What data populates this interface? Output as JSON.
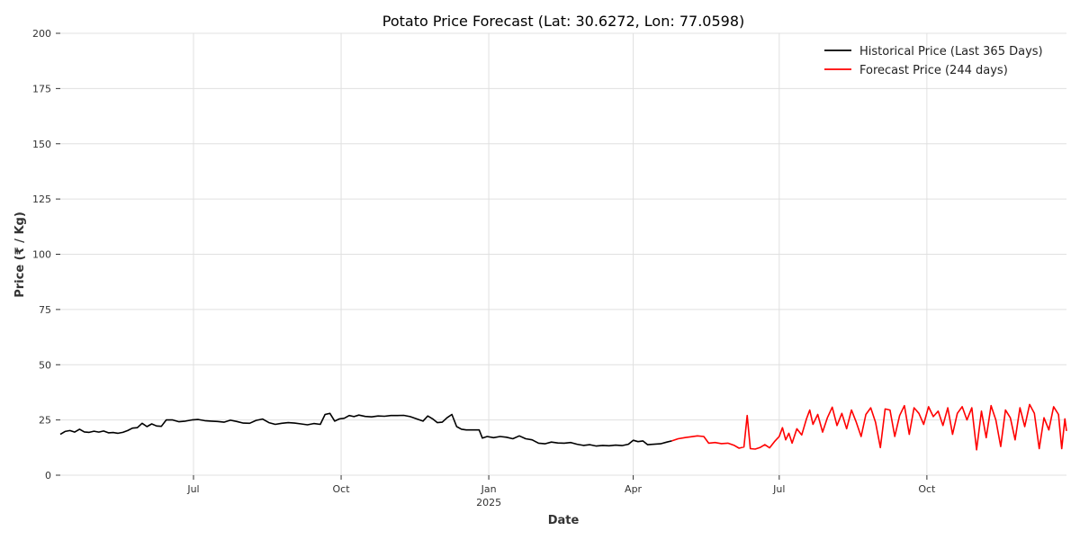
{
  "chart_data": {
    "type": "line",
    "title": "Potato Price Forecast (Lat: 30.6272, Lon: 77.0598)",
    "xlabel": "Date",
    "ylabel": "Price (₹ / Kg)",
    "xlim": [
      "2024-04-09",
      "2025-12-27"
    ],
    "ylim": [
      0,
      200
    ],
    "yticks": [
      0,
      25,
      50,
      75,
      100,
      125,
      150,
      175,
      200
    ],
    "xticks": [
      {
        "date": "2024-07-01",
        "label": "Jul",
        "sublabel": ""
      },
      {
        "date": "2024-10-01",
        "label": "Oct",
        "sublabel": ""
      },
      {
        "date": "2025-01-01",
        "label": "Jan",
        "sublabel": "2025"
      },
      {
        "date": "2025-04-01",
        "label": "Apr",
        "sublabel": ""
      },
      {
        "date": "2025-07-01",
        "label": "Jul",
        "sublabel": ""
      },
      {
        "date": "2025-10-01",
        "label": "Oct",
        "sublabel": ""
      }
    ],
    "grid": true,
    "legend_position": "top-right",
    "series": [
      {
        "name": "Historical Price (Last 365 Days)",
        "color": "#000000",
        "points": [
          [
            "2024-04-09",
            18.5
          ],
          [
            "2024-04-12",
            19.8
          ],
          [
            "2024-04-15",
            20.2
          ],
          [
            "2024-04-18",
            19.5
          ],
          [
            "2024-04-21",
            20.8
          ],
          [
            "2024-04-24",
            19.6
          ],
          [
            "2024-04-27",
            19.4
          ],
          [
            "2024-04-30",
            19.9
          ],
          [
            "2024-05-03",
            19.5
          ],
          [
            "2024-05-06",
            20.0
          ],
          [
            "2024-05-09",
            19.2
          ],
          [
            "2024-05-12",
            19.3
          ],
          [
            "2024-05-15",
            19.0
          ],
          [
            "2024-05-18",
            19.4
          ],
          [
            "2024-05-21",
            20.2
          ],
          [
            "2024-05-24",
            21.3
          ],
          [
            "2024-05-27",
            21.5
          ],
          [
            "2024-05-30",
            23.5
          ],
          [
            "2024-06-02",
            22.0
          ],
          [
            "2024-06-05",
            23.2
          ],
          [
            "2024-06-08",
            22.3
          ],
          [
            "2024-06-11",
            22.1
          ],
          [
            "2024-06-14",
            25.0
          ],
          [
            "2024-06-18",
            25.0
          ],
          [
            "2024-06-22",
            24.2
          ],
          [
            "2024-06-26",
            24.5
          ],
          [
            "2024-06-30",
            25.0
          ],
          [
            "2024-07-04",
            25.2
          ],
          [
            "2024-07-08",
            24.7
          ],
          [
            "2024-07-12",
            24.5
          ],
          [
            "2024-07-16",
            24.3
          ],
          [
            "2024-07-20",
            24.0
          ],
          [
            "2024-07-24",
            24.9
          ],
          [
            "2024-07-28",
            24.3
          ],
          [
            "2024-08-01",
            23.6
          ],
          [
            "2024-08-05",
            23.5
          ],
          [
            "2024-08-09",
            24.8
          ],
          [
            "2024-08-13",
            25.4
          ],
          [
            "2024-08-17",
            23.8
          ],
          [
            "2024-08-21",
            23.0
          ],
          [
            "2024-08-25",
            23.5
          ],
          [
            "2024-08-29",
            23.8
          ],
          [
            "2024-09-02",
            23.6
          ],
          [
            "2024-09-06",
            23.2
          ],
          [
            "2024-09-10",
            22.8
          ],
          [
            "2024-09-14",
            23.4
          ],
          [
            "2024-09-18",
            23.0
          ],
          [
            "2024-09-21",
            27.5
          ],
          [
            "2024-09-24",
            28.0
          ],
          [
            "2024-09-27",
            24.5
          ],
          [
            "2024-09-30",
            25.5
          ],
          [
            "2024-10-03",
            25.8
          ],
          [
            "2024-10-06",
            27.0
          ],
          [
            "2024-10-09",
            26.5
          ],
          [
            "2024-10-12",
            27.2
          ],
          [
            "2024-10-16",
            26.6
          ],
          [
            "2024-10-20",
            26.4
          ],
          [
            "2024-10-24",
            26.8
          ],
          [
            "2024-10-28",
            26.7
          ],
          [
            "2024-11-01",
            27.0
          ],
          [
            "2024-11-05",
            27.0
          ],
          [
            "2024-11-09",
            27.1
          ],
          [
            "2024-11-13",
            26.5
          ],
          [
            "2024-11-17",
            25.5
          ],
          [
            "2024-11-21",
            24.5
          ],
          [
            "2024-11-24",
            26.8
          ],
          [
            "2024-11-27",
            25.5
          ],
          [
            "2024-11-30",
            23.8
          ],
          [
            "2024-12-03",
            24.0
          ],
          [
            "2024-12-06",
            26.0
          ],
          [
            "2024-12-09",
            27.5
          ],
          [
            "2024-12-12",
            22.0
          ],
          [
            "2024-12-15",
            20.8
          ],
          [
            "2024-12-18",
            20.5
          ],
          [
            "2024-12-22",
            20.5
          ],
          [
            "2024-12-26",
            20.5
          ],
          [
            "2024-12-28",
            16.8
          ],
          [
            "2024-12-31",
            17.5
          ],
          [
            "2025-01-04",
            17.0
          ],
          [
            "2025-01-08",
            17.5
          ],
          [
            "2025-01-12",
            17.2
          ],
          [
            "2025-01-16",
            16.5
          ],
          [
            "2025-01-20",
            17.8
          ],
          [
            "2025-01-24",
            16.5
          ],
          [
            "2025-01-28",
            16.0
          ],
          [
            "2025-02-01",
            14.5
          ],
          [
            "2025-02-05",
            14.2
          ],
          [
            "2025-02-09",
            15.0
          ],
          [
            "2025-02-13",
            14.6
          ],
          [
            "2025-02-17",
            14.5
          ],
          [
            "2025-02-21",
            14.8
          ],
          [
            "2025-02-25",
            14.0
          ],
          [
            "2025-03-01",
            13.5
          ],
          [
            "2025-03-05",
            13.8
          ],
          [
            "2025-03-09",
            13.2
          ],
          [
            "2025-03-13",
            13.5
          ],
          [
            "2025-03-17",
            13.3
          ],
          [
            "2025-03-21",
            13.6
          ],
          [
            "2025-03-25",
            13.4
          ],
          [
            "2025-03-29",
            14.0
          ],
          [
            "2025-04-01",
            15.8
          ],
          [
            "2025-04-04",
            15.2
          ],
          [
            "2025-04-07",
            15.5
          ],
          [
            "2025-04-10",
            13.8
          ],
          [
            "2025-04-14",
            14.0
          ],
          [
            "2025-04-18",
            14.2
          ],
          [
            "2025-04-22",
            15.0
          ],
          [
            "2025-04-25",
            15.5
          ]
        ]
      },
      {
        "name": "Forecast Price (244 days)",
        "color": "#ff0000",
        "points": [
          [
            "2025-04-25",
            15.5
          ],
          [
            "2025-04-29",
            16.5
          ],
          [
            "2025-05-03",
            17.0
          ],
          [
            "2025-05-07",
            17.4
          ],
          [
            "2025-05-11",
            17.8
          ],
          [
            "2025-05-15",
            17.5
          ],
          [
            "2025-05-18",
            14.5
          ],
          [
            "2025-05-22",
            14.8
          ],
          [
            "2025-05-26",
            14.3
          ],
          [
            "2025-05-30",
            14.5
          ],
          [
            "2025-06-03",
            13.5
          ],
          [
            "2025-06-06",
            12.2
          ],
          [
            "2025-06-09",
            12.8
          ],
          [
            "2025-06-11",
            27.0
          ],
          [
            "2025-06-13",
            12.0
          ],
          [
            "2025-06-16",
            11.8
          ],
          [
            "2025-06-19",
            12.5
          ],
          [
            "2025-06-22",
            13.8
          ],
          [
            "2025-06-25",
            12.4
          ],
          [
            "2025-06-28",
            15.2
          ],
          [
            "2025-07-01",
            17.5
          ],
          [
            "2025-07-03",
            21.5
          ],
          [
            "2025-07-05",
            16.0
          ],
          [
            "2025-07-07",
            19.0
          ],
          [
            "2025-07-09",
            14.5
          ],
          [
            "2025-07-12",
            21.0
          ],
          [
            "2025-07-15",
            18.2
          ],
          [
            "2025-07-18",
            25.5
          ],
          [
            "2025-07-20",
            29.5
          ],
          [
            "2025-07-22",
            23.0
          ],
          [
            "2025-07-25",
            27.5
          ],
          [
            "2025-07-28",
            19.5
          ],
          [
            "2025-07-31",
            26.0
          ],
          [
            "2025-08-03",
            30.8
          ],
          [
            "2025-08-06",
            22.5
          ],
          [
            "2025-08-09",
            28.0
          ],
          [
            "2025-08-12",
            21.0
          ],
          [
            "2025-08-15",
            29.5
          ],
          [
            "2025-08-18",
            24.0
          ],
          [
            "2025-08-21",
            17.5
          ],
          [
            "2025-08-24",
            27.5
          ],
          [
            "2025-08-27",
            30.5
          ],
          [
            "2025-08-30",
            24.0
          ],
          [
            "2025-09-02",
            12.5
          ],
          [
            "2025-09-05",
            30.0
          ],
          [
            "2025-09-08",
            29.5
          ],
          [
            "2025-09-11",
            17.5
          ],
          [
            "2025-09-14",
            27.0
          ],
          [
            "2025-09-17",
            31.5
          ],
          [
            "2025-09-20",
            18.5
          ],
          [
            "2025-09-23",
            30.5
          ],
          [
            "2025-09-26",
            28.0
          ],
          [
            "2025-09-29",
            23.0
          ],
          [
            "2025-10-02",
            31.0
          ],
          [
            "2025-10-05",
            26.5
          ],
          [
            "2025-10-08",
            29.0
          ],
          [
            "2025-10-11",
            22.5
          ],
          [
            "2025-10-14",
            30.5
          ],
          [
            "2025-10-17",
            18.5
          ],
          [
            "2025-10-20",
            28.0
          ],
          [
            "2025-10-23",
            31.0
          ],
          [
            "2025-10-26",
            25.0
          ],
          [
            "2025-10-29",
            30.5
          ],
          [
            "2025-11-01",
            11.5
          ],
          [
            "2025-11-04",
            29.0
          ],
          [
            "2025-11-07",
            17.0
          ],
          [
            "2025-11-10",
            31.5
          ],
          [
            "2025-11-13",
            25.0
          ],
          [
            "2025-11-16",
            13.0
          ],
          [
            "2025-11-19",
            29.5
          ],
          [
            "2025-11-22",
            26.0
          ],
          [
            "2025-11-25",
            16.0
          ],
          [
            "2025-11-28",
            30.5
          ],
          [
            "2025-12-01",
            22.0
          ],
          [
            "2025-12-04",
            32.0
          ],
          [
            "2025-12-07",
            28.0
          ],
          [
            "2025-12-10",
            12.0
          ],
          [
            "2025-12-13",
            26.0
          ],
          [
            "2025-12-16",
            20.5
          ],
          [
            "2025-12-19",
            31.0
          ],
          [
            "2025-12-22",
            27.5
          ],
          [
            "2025-12-24",
            12.0
          ],
          [
            "2025-12-26",
            25.5
          ],
          [
            "2025-12-27",
            20.0
          ]
        ]
      }
    ]
  }
}
